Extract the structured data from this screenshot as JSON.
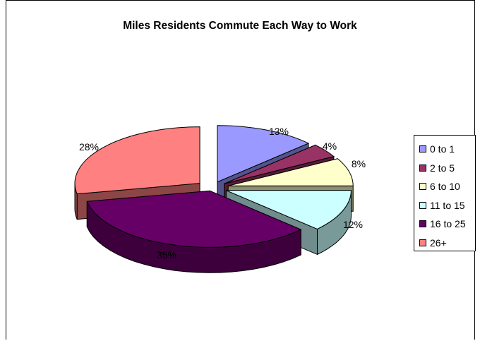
{
  "chart_data": {
    "type": "pie",
    "title": "Miles Residents Commute Each Way to Work",
    "categories": [
      "0 to 1",
      "2 to 5",
      "6 to 10",
      "11 to 15",
      "16 to 25",
      "26+"
    ],
    "values": [
      13,
      4,
      8,
      12,
      35,
      28
    ],
    "labels": [
      "13%",
      "4%",
      "8%",
      "12%",
      "35%",
      "28%"
    ],
    "colors": [
      "#9999ff",
      "#993366",
      "#ffffcc",
      "#ccffff",
      "#660066",
      "#ff8080"
    ],
    "legend_position": "right",
    "style": "3d-exploded"
  }
}
